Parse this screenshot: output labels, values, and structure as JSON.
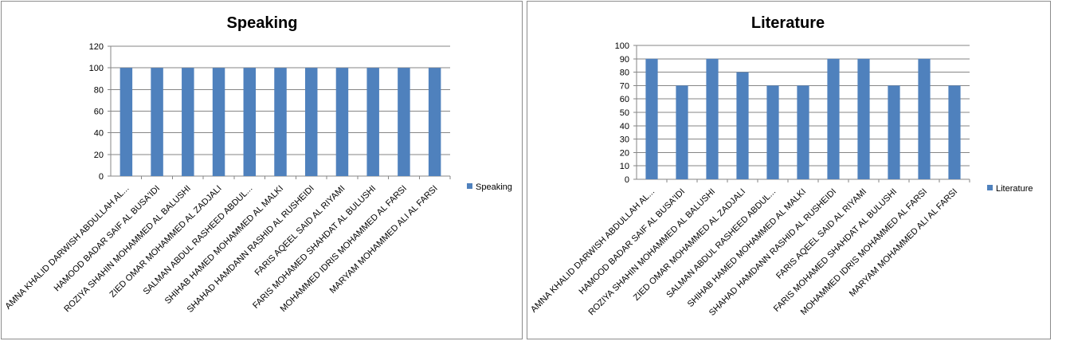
{
  "chart_data": [
    {
      "type": "bar",
      "title": "Speaking",
      "categories": [
        "AMNA KHALID DARWISH ABDULLAH AL...",
        "HAMOOD BADAR SAIF AL BUSA'IDI",
        "ROZIYA SHAHIN MOHAMMED AL BALUSHI",
        "ZIED OMAR MOHAMMED AL ZADJALI",
        "SALMAN ABDUL RASHEED ABDUL...",
        "SHIHAB HAMED MOHAMMED AL MALKI",
        "SHAHAD HAMDANN RASHID AL RUSHEIDI",
        "FARIS AQEEL SAID AL RIYAMI",
        "FARIS MOHAMED SHAHDAT AL BULUSHI",
        "MOHAMMED IDRIS MOHAMMED AL FARSI",
        "MARYAM MOHAMMED ALI AL FARSI"
      ],
      "series": [
        {
          "name": "Speaking",
          "values": [
            100,
            100,
            100,
            100,
            100,
            100,
            100,
            100,
            100,
            100,
            100
          ]
        }
      ],
      "ylim": [
        0,
        120
      ],
      "yticks": [
        0,
        20,
        40,
        60,
        80,
        100,
        120
      ],
      "grid": true,
      "legend": "right",
      "colors": {
        "bar": "#4F81BD",
        "grid": "#868686"
      }
    },
    {
      "type": "bar",
      "title": "Literature",
      "categories": [
        "AMNA KHALID DARWISH ABDULLAH AL...",
        "HAMOOD BADAR SAIF AL BUSA'IDI",
        "ROZIYA SHAHIN MOHAMMED AL BALUSHI",
        "ZIED OMAR MOHAMMED AL ZADJALI",
        "SALMAN ABDUL RASHEED ABDUL...",
        "SHIHAB HAMED MOHAMMED AL MALKI",
        "SHAHAD HAMDANN RASHID AL RUSHEIDI",
        "FARIS AQEEL SAID AL RIYAMI",
        "FARIS MOHAMED SHAHDAT AL BULUSHI",
        "MOHAMMED IDRIS MOHAMMED AL FARSI",
        "MARYAM MOHAMMED ALI AL FARSI"
      ],
      "series": [
        {
          "name": "Literature",
          "values": [
            90,
            70,
            90,
            80,
            70,
            70,
            90,
            90,
            70,
            90,
            70
          ]
        }
      ],
      "ylim": [
        0,
        100
      ],
      "yticks": [
        0,
        10,
        20,
        30,
        40,
        50,
        60,
        70,
        80,
        90,
        100
      ],
      "grid": true,
      "legend": "right",
      "colors": {
        "bar": "#4F81BD",
        "grid": "#868686"
      }
    }
  ]
}
